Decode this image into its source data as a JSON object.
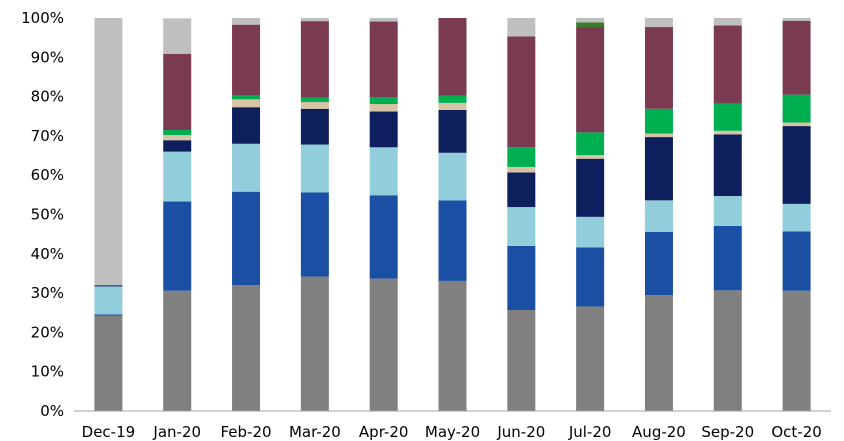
{
  "chart_data": {
    "type": "bar",
    "stacked": true,
    "categories": [
      "Dec-19",
      "Jan-20",
      "Feb-20",
      "Mar-20",
      "Apr-20",
      "May-20",
      "Jun-20",
      "Jul-20",
      "Aug-20",
      "Sep-20",
      "Oct-20"
    ],
    "ylim": [
      0,
      100
    ],
    "yticks": [
      "0%",
      "10%",
      "20%",
      "30%",
      "40%",
      "50%",
      "60%",
      "70%",
      "80%",
      "90%",
      "100%"
    ],
    "grid": false,
    "legend": "none",
    "series": [
      {
        "color": "#808080",
        "values": [
          24.3,
          30.6,
          32.0,
          34.2,
          33.7,
          33.1,
          25.7,
          26.6,
          29.5,
          30.7,
          30.6
        ]
      },
      {
        "color": "#1b4fa3",
        "values": [
          0.3,
          22.7,
          23.8,
          21.4,
          21.2,
          20.5,
          16.3,
          15.0,
          16.1,
          16.4,
          15.1
        ]
      },
      {
        "color": "#92cddc",
        "values": [
          7.1,
          12.7,
          12.2,
          12.2,
          12.2,
          12.1,
          9.9,
          7.8,
          8.0,
          7.6,
          7.0
        ]
      },
      {
        "color": "#0d1f5c",
        "values": [
          0.3,
          2.9,
          9.3,
          9.1,
          9.1,
          10.9,
          8.8,
          14.8,
          16.1,
          15.7,
          19.8
        ]
      },
      {
        "color": "#d9c3a5",
        "values": [
          0.0,
          1.3,
          2.0,
          1.7,
          1.9,
          1.8,
          1.4,
          0.9,
          0.9,
          0.9,
          0.9
        ]
      },
      {
        "color": "#00b050",
        "values": [
          0.0,
          1.3,
          1.0,
          1.1,
          1.8,
          1.8,
          5.0,
          5.8,
          6.3,
          6.9,
          7.1
        ]
      },
      {
        "color": "#7a3a52",
        "values": [
          0.0,
          19.4,
          18.0,
          19.5,
          19.2,
          19.8,
          28.2,
          26.8,
          20.8,
          19.9,
          18.8
        ]
      },
      {
        "color": "#3c7a2e",
        "values": [
          0.0,
          0.0,
          0.0,
          0.0,
          0.0,
          0.0,
          0.0,
          1.2,
          0.0,
          0.0,
          0.0
        ]
      },
      {
        "color": "#bfbfbf",
        "values": [
          68.0,
          9.0,
          1.7,
          0.8,
          0.9,
          0.0,
          4.7,
          1.1,
          2.3,
          1.9,
          0.7
        ]
      }
    ]
  }
}
